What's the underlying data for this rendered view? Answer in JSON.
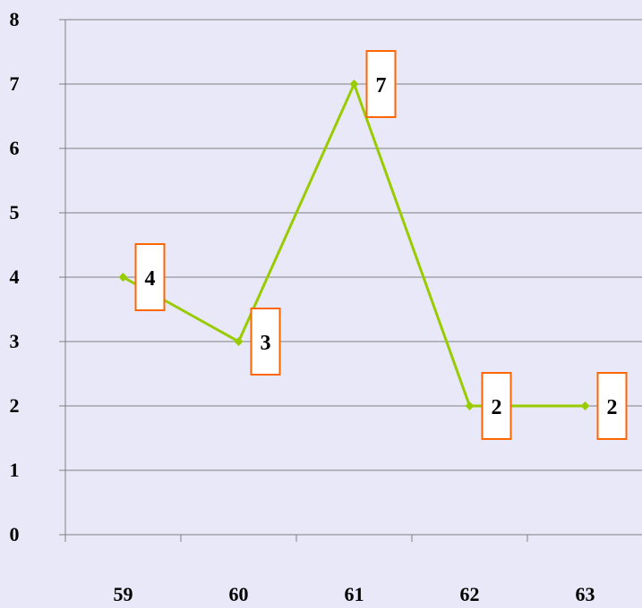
{
  "chart_data": {
    "type": "line",
    "categories": [
      "59",
      "60",
      "61",
      "62",
      "63"
    ],
    "series": [
      {
        "values": [
          4,
          3,
          7,
          2,
          2
        ],
        "color": "#99cc00",
        "marker": "diamond"
      }
    ],
    "ylim": [
      0,
      8
    ],
    "yticks": [
      "0",
      "1",
      "2",
      "3",
      "4",
      "5",
      "6",
      "7",
      "8"
    ],
    "grid": true,
    "legend": "none",
    "data_label_border_color": "#ff6600",
    "gridline_color": "#808080",
    "background": "#e8e8f8"
  }
}
